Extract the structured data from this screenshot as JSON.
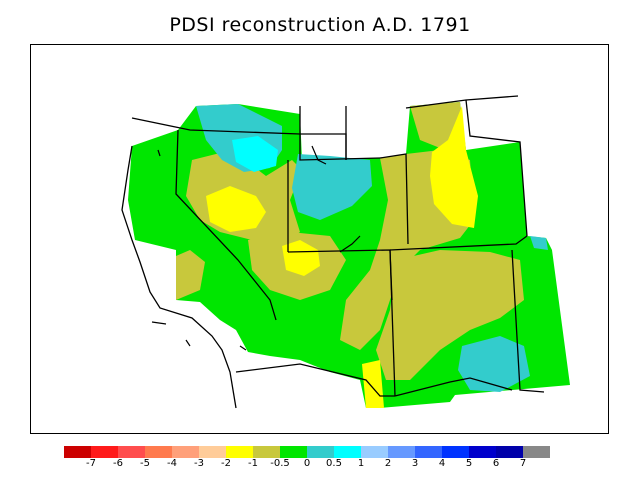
{
  "title": "PDSI reconstruction A.D. 1791",
  "legend": {
    "colors": [
      "#cc0000",
      "#ff1a1a",
      "#ff4d4d",
      "#ff7a4d",
      "#ffa07a",
      "#ffcc99",
      "#ffff00",
      "#c8c83c",
      "#00e600",
      "#33cccc",
      "#00ffff",
      "#99ccff",
      "#6699ff",
      "#3366ff",
      "#0033ff",
      "#0000cc",
      "#0000aa",
      "#888888"
    ],
    "ticks": [
      "-7",
      "-6",
      "-5",
      "-4",
      "-3",
      "-2",
      "-1",
      "-0.5",
      "0",
      "0.5",
      "1",
      "2",
      "3",
      "4",
      "5",
      "6",
      "7"
    ]
  },
  "map": {
    "region": "Western United States",
    "colors": {
      "green": "#00e600",
      "olive": "#c8c83c",
      "yellow": "#ffff00",
      "teal": "#33cccc",
      "cyan": "#00ffff"
    }
  }
}
